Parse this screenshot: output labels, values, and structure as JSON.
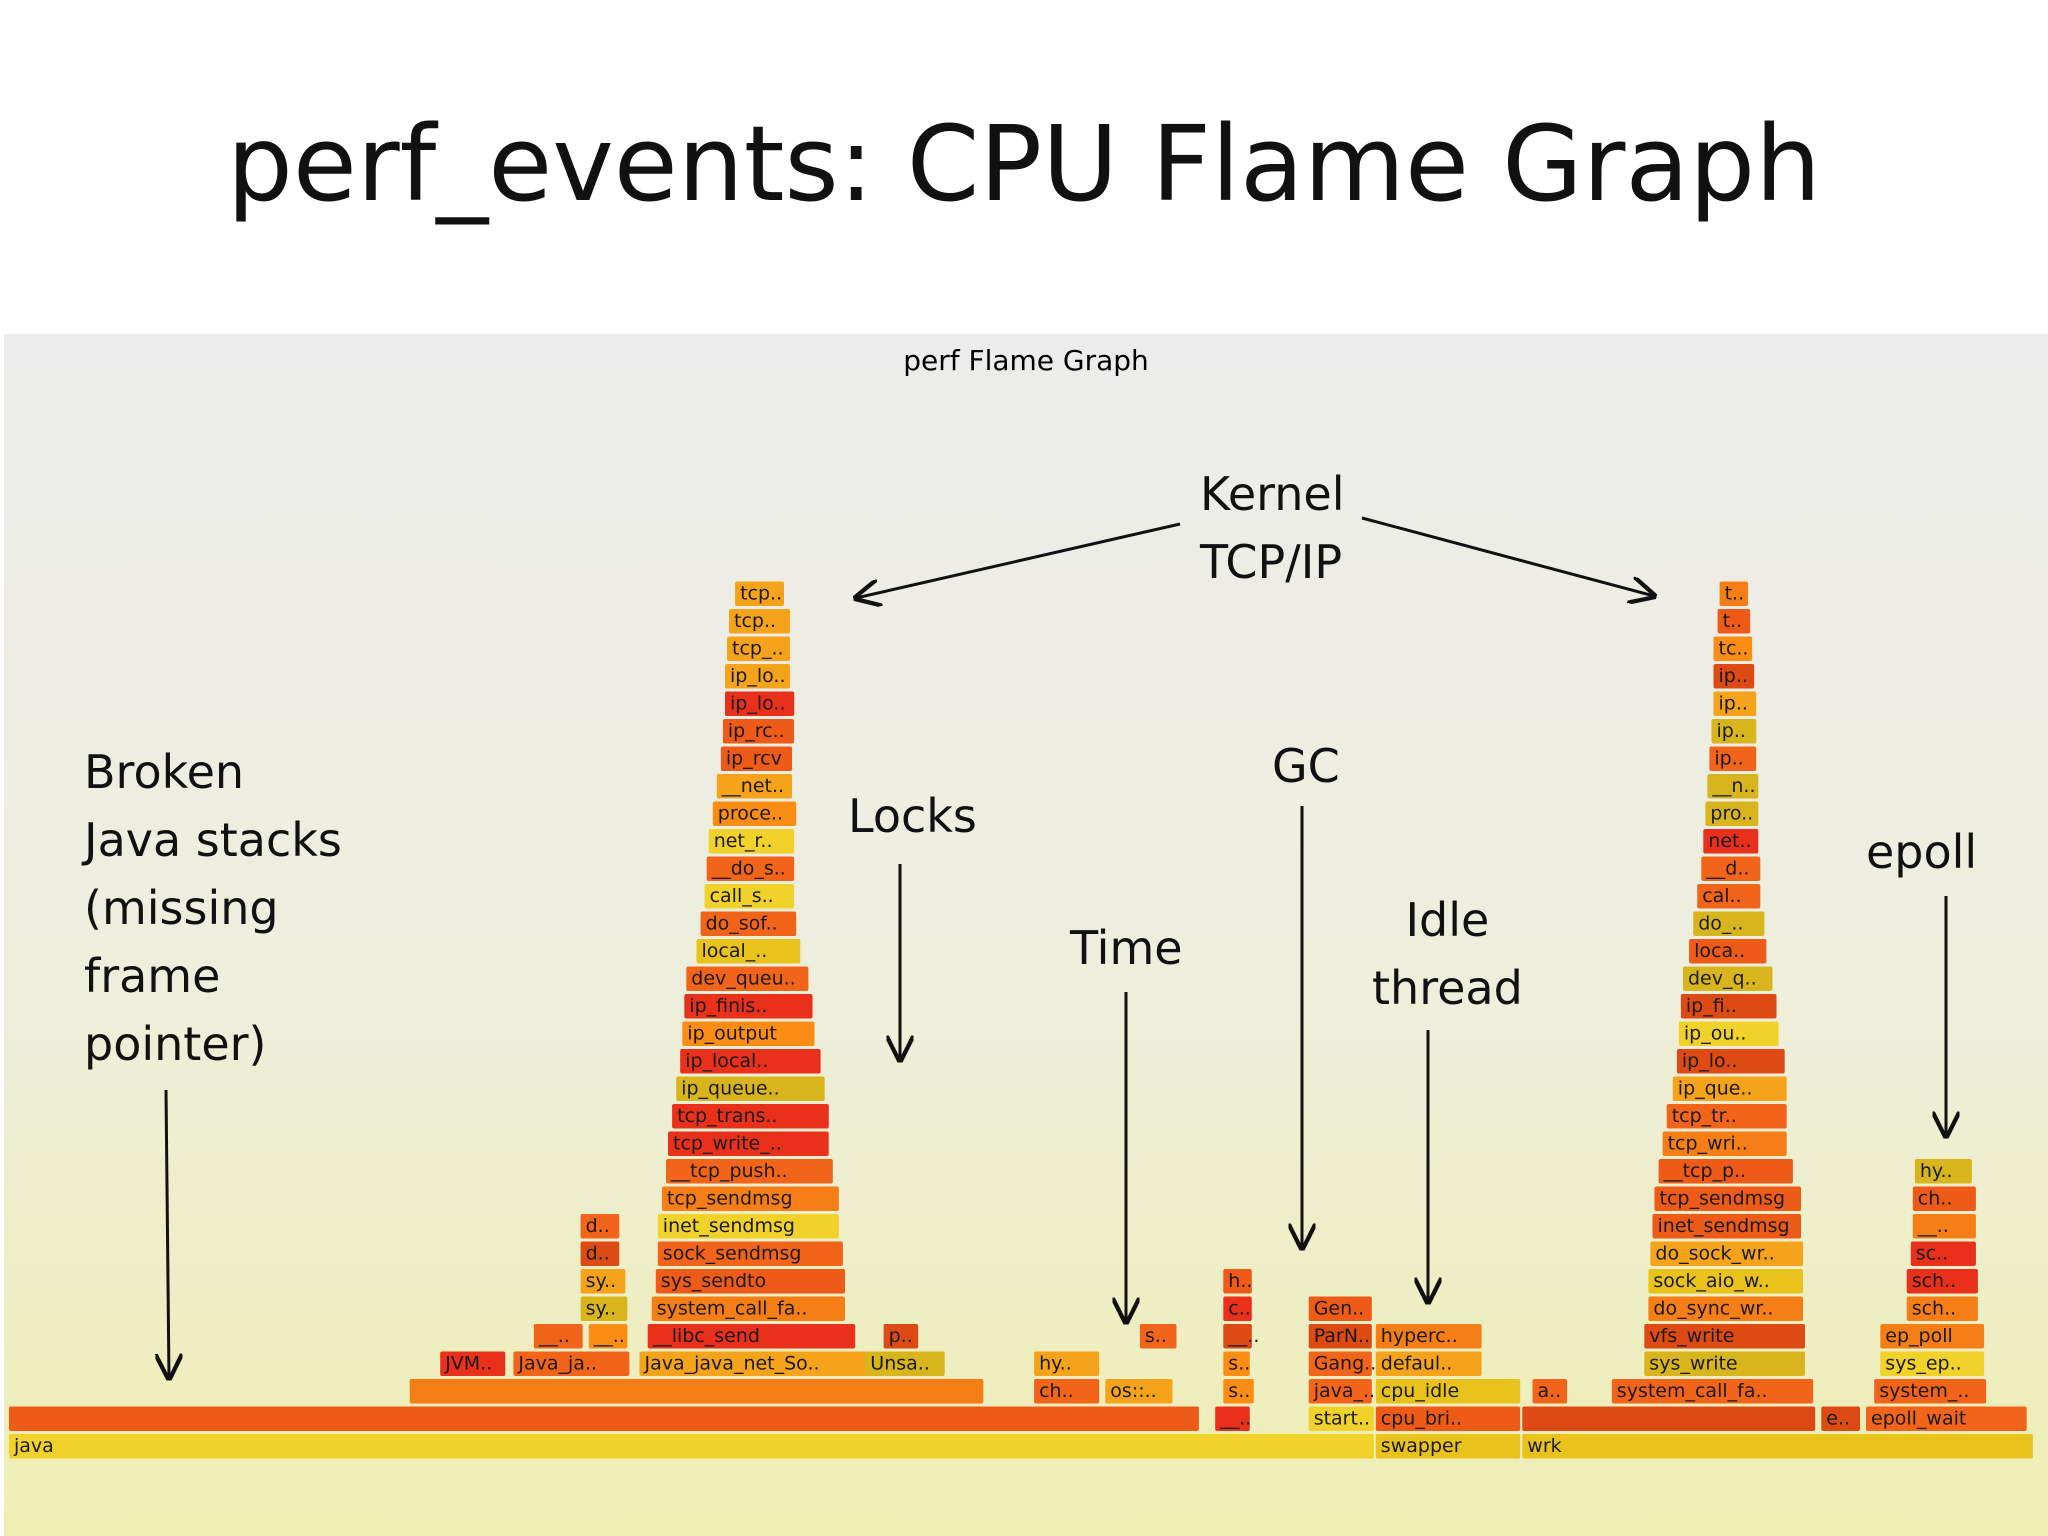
{
  "slide": {
    "title": "perf_events: CPU Flame Graph"
  },
  "graph": {
    "title": "perf Flame Graph"
  },
  "annotations": {
    "broken_java": "Broken\nJava stacks\n(missing\nframe\npointer)",
    "kernel": "Kernel\nTCP/IP",
    "locks": "Locks",
    "time": "Time",
    "gc": "GC",
    "idle": "Idle\nthread",
    "epoll": "epoll"
  },
  "frames": [
    {
      "name": "java",
      "level": 0,
      "start": 0,
      "width": 67.2
    },
    {
      "name": "swapper",
      "level": 0,
      "start": 67.2,
      "width": 7.2
    },
    {
      "name": "wrk",
      "level": 0,
      "start": 74.4,
      "width": 25.2
    },
    {
      "name": "",
      "level": 1,
      "start": 0,
      "width": 58.6
    },
    {
      "name": "__..",
      "level": 1,
      "start": 59.3,
      "width": 1.8
    },
    {
      "name": "start..",
      "level": 1,
      "start": 63.9,
      "width": 3.3
    },
    {
      "name": "cpu_bri..",
      "level": 1,
      "start": 67.2,
      "width": 7.2
    },
    {
      "name": "",
      "level": 1,
      "start": 74.4,
      "width": 14.5
    },
    {
      "name": "e..",
      "level": 1,
      "start": 89.1,
      "width": 2
    },
    {
      "name": "epoll_wait",
      "level": 1,
      "start": 91.3,
      "width": 8
    },
    {
      "name": "",
      "level": 2,
      "start": 19.7,
      "width": 28.3
    },
    {
      "name": "ch..",
      "level": 2,
      "start": 50.4,
      "width": 3.3
    },
    {
      "name": "os::..",
      "level": 2,
      "start": 53.9,
      "width": 3.4
    },
    {
      "name": "s..",
      "level": 2,
      "start": 59.7,
      "width": 1.6
    },
    {
      "name": "java_..",
      "level": 2,
      "start": 63.9,
      "width": 3.2
    },
    {
      "name": "cpu_idle",
      "level": 2,
      "start": 67.2,
      "width": 7.2
    },
    {
      "name": "a..",
      "level": 2,
      "start": 74.9,
      "width": 1.8
    },
    {
      "name": "system_call_fa..",
      "level": 2,
      "start": 78.8,
      "width": 10
    },
    {
      "name": "system_..",
      "level": 2,
      "start": 91.7,
      "width": 5.6
    },
    {
      "name": "JVM..",
      "level": 3,
      "start": 21.2,
      "width": 3.3
    },
    {
      "name": "Java_ja..",
      "level": 3,
      "start": 24.8,
      "width": 5.8
    },
    {
      "name": "Java_java_net_So..",
      "level": 3,
      "start": 31,
      "width": 11.5
    },
    {
      "name": "Unsa..",
      "level": 3,
      "start": 42.1,
      "width": 4
    },
    {
      "name": "hy..",
      "level": 3,
      "start": 50.4,
      "width": 3.3
    },
    {
      "name": "s..",
      "level": 3,
      "start": 59.7,
      "width": 1.4
    },
    {
      "name": "Gang..",
      "level": 3,
      "start": 63.9,
      "width": 3.2
    },
    {
      "name": "defaul..",
      "level": 3,
      "start": 67.2,
      "width": 5.3
    },
    {
      "name": "sys_write",
      "level": 3,
      "start": 80.4,
      "width": 8
    },
    {
      "name": "sys_ep..",
      "level": 3,
      "start": 92,
      "width": 5.2
    },
    {
      "name": "__..",
      "level": 4,
      "start": 25.8,
      "width": 2.5
    },
    {
      "name": "__..",
      "level": 4,
      "start": 28.5,
      "width": 2
    },
    {
      "name": "__libc_send",
      "level": 4,
      "start": 31.4,
      "width": 10.3
    },
    {
      "name": "p..",
      "level": 4,
      "start": 43,
      "width": 1.8
    },
    {
      "name": "s..",
      "level": 4,
      "start": 55.6,
      "width": 1.9
    },
    {
      "name": "__..",
      "level": 4,
      "start": 59.7,
      "width": 1.5
    },
    {
      "name": "ParN..",
      "level": 4,
      "start": 63.9,
      "width": 3.2
    },
    {
      "name": "hyperc..",
      "level": 4,
      "start": 67.2,
      "width": 5.3
    },
    {
      "name": "vfs_write",
      "level": 4,
      "start": 80.4,
      "width": 8
    },
    {
      "name": "ep_poll",
      "level": 4,
      "start": 92,
      "width": 5.2
    },
    {
      "name": "sy..",
      "level": 5,
      "start": 28.1,
      "width": 2.4
    },
    {
      "name": "system_call_fa..",
      "level": 5,
      "start": 31.6,
      "width": 9.6
    },
    {
      "name": "c..",
      "level": 5,
      "start": 59.7,
      "width": 1.5
    },
    {
      "name": "Gen..",
      "level": 5,
      "start": 63.9,
      "width": 3.2
    },
    {
      "name": "do_sync_wr..",
      "level": 5,
      "start": 80.6,
      "width": 7.7
    },
    {
      "name": "sch..",
      "level": 5,
      "start": 93.3,
      "width": 3.6
    },
    {
      "name": "sy..",
      "level": 6,
      "start": 28.1,
      "width": 2.3
    },
    {
      "name": "sys_sendto",
      "level": 6,
      "start": 31.8,
      "width": 9.4
    },
    {
      "name": "h..",
      "level": 6,
      "start": 59.7,
      "width": 1.5
    },
    {
      "name": "sock_aio_w..",
      "level": 6,
      "start": 80.6,
      "width": 7.7
    },
    {
      "name": "sch..",
      "level": 6,
      "start": 93.3,
      "width": 3.6
    },
    {
      "name": "d..",
      "level": 7,
      "start": 28.1,
      "width": 2
    },
    {
      "name": "sock_sendmsg",
      "level": 7,
      "start": 31.9,
      "width": 9.2
    },
    {
      "name": "do_sock_wr..",
      "level": 7,
      "start": 80.7,
      "width": 7.6
    },
    {
      "name": "sc..",
      "level": 7,
      "start": 93.5,
      "width": 3.3
    },
    {
      "name": "d..",
      "level": 8,
      "start": 28.1,
      "width": 2
    },
    {
      "name": "inet_sendmsg",
      "level": 8,
      "start": 31.9,
      "width": 9
    },
    {
      "name": "inet_sendmsg",
      "level": 8,
      "start": 80.8,
      "width": 7.4
    },
    {
      "name": "__..",
      "level": 8,
      "start": 93.6,
      "width": 3.2
    },
    {
      "name": "tcp_sendmsg",
      "level": 9,
      "start": 32.1,
      "width": 8.8
    },
    {
      "name": "tcp_sendmsg",
      "level": 9,
      "start": 80.9,
      "width": 7.3
    },
    {
      "name": "ch..",
      "level": 9,
      "start": 93.6,
      "width": 3.2
    },
    {
      "name": "__tcp_push..",
      "level": 10,
      "start": 32.3,
      "width": 8.3
    },
    {
      "name": "__tcp_p..",
      "level": 10,
      "start": 81.1,
      "width": 6.7
    },
    {
      "name": "hy..",
      "level": 10,
      "start": 93.7,
      "width": 2.9
    },
    {
      "name": "tcp_write_..",
      "level": 11,
      "start": 32.4,
      "width": 8
    },
    {
      "name": "tcp_wri..",
      "level": 11,
      "start": 81.3,
      "width": 6.2
    },
    {
      "name": "tcp_trans..",
      "level": 12,
      "start": 32.6,
      "width": 7.8
    },
    {
      "name": "tcp_tr..",
      "level": 12,
      "start": 81.5,
      "width": 6
    },
    {
      "name": "ip_queue..",
      "level": 13,
      "start": 32.8,
      "width": 7.4
    },
    {
      "name": "ip_que..",
      "level": 13,
      "start": 81.8,
      "width": 5.7
    },
    {
      "name": "ip_local..",
      "level": 14,
      "start": 33,
      "width": 7
    },
    {
      "name": "ip_lo..",
      "level": 14,
      "start": 82,
      "width": 5.4
    },
    {
      "name": "ip_output",
      "level": 15,
      "start": 33.1,
      "width": 6.6
    },
    {
      "name": "ip_ou..",
      "level": 15,
      "start": 82.1,
      "width": 5
    },
    {
      "name": "ip_finis..",
      "level": 16,
      "start": 33.2,
      "width": 6.4
    },
    {
      "name": "ip_fi..",
      "level": 16,
      "start": 82.2,
      "width": 4.8
    },
    {
      "name": "dev_queu..",
      "level": 17,
      "start": 33.3,
      "width": 6.1
    },
    {
      "name": "dev_q..",
      "level": 17,
      "start": 82.3,
      "width": 4.5
    },
    {
      "name": "local_..",
      "level": 18,
      "start": 33.8,
      "width": 5.2
    },
    {
      "name": "loca..",
      "level": 18,
      "start": 82.6,
      "width": 3.9
    },
    {
      "name": "do_sof..",
      "level": 19,
      "start": 34,
      "width": 4.8
    },
    {
      "name": "do_..",
      "level": 19,
      "start": 82.8,
      "width": 3.6
    },
    {
      "name": "call_s..",
      "level": 20,
      "start": 34.2,
      "width": 4.5
    },
    {
      "name": "cal..",
      "level": 20,
      "start": 83,
      "width": 3.2
    },
    {
      "name": "__do_s..",
      "level": 21,
      "start": 34.3,
      "width": 4.4
    },
    {
      "name": "__d..",
      "level": 21,
      "start": 83.2,
      "width": 3
    },
    {
      "name": "net_r..",
      "level": 22,
      "start": 34.4,
      "width": 4.3
    },
    {
      "name": "net..",
      "level": 22,
      "start": 83.3,
      "width": 2.8
    },
    {
      "name": "proce..",
      "level": 23,
      "start": 34.6,
      "width": 4.2
    },
    {
      "name": "pro..",
      "level": 23,
      "start": 83.4,
      "width": 2.7
    },
    {
      "name": "__net..",
      "level": 24,
      "start": 34.8,
      "width": 3.8
    },
    {
      "name": "__n..",
      "level": 24,
      "start": 83.5,
      "width": 2.6
    },
    {
      "name": "ip_rcv",
      "level": 25,
      "start": 35,
      "width": 3.6
    },
    {
      "name": "ip..",
      "level": 25,
      "start": 83.6,
      "width": 2.4
    },
    {
      "name": "ip_rc..",
      "level": 26,
      "start": 35.1,
      "width": 3.6
    },
    {
      "name": "ip..",
      "level": 26,
      "start": 83.7,
      "width": 2.3
    },
    {
      "name": "ip_lo..",
      "level": 27,
      "start": 35.2,
      "width": 3.5
    },
    {
      "name": "ip..",
      "level": 27,
      "start": 83.8,
      "width": 2.2
    },
    {
      "name": "ip_lo..",
      "level": 28,
      "start": 35.2,
      "width": 3.3
    },
    {
      "name": "ip..",
      "level": 28,
      "start": 83.8,
      "width": 2.1
    },
    {
      "name": "tcp_..",
      "level": 29,
      "start": 35.3,
      "width": 3.2
    },
    {
      "name": "tc..",
      "level": 29,
      "start": 83.8,
      "width": 2
    },
    {
      "name": "tcp..",
      "level": 30,
      "start": 35.4,
      "width": 3.1
    },
    {
      "name": "t..",
      "level": 30,
      "start": 84,
      "width": 1.7
    },
    {
      "name": "tcp..",
      "level": 31,
      "start": 35.7,
      "width": 2.5
    },
    {
      "name": "t..",
      "level": 31,
      "start": 84.1,
      "width": 1.5
    }
  ]
}
